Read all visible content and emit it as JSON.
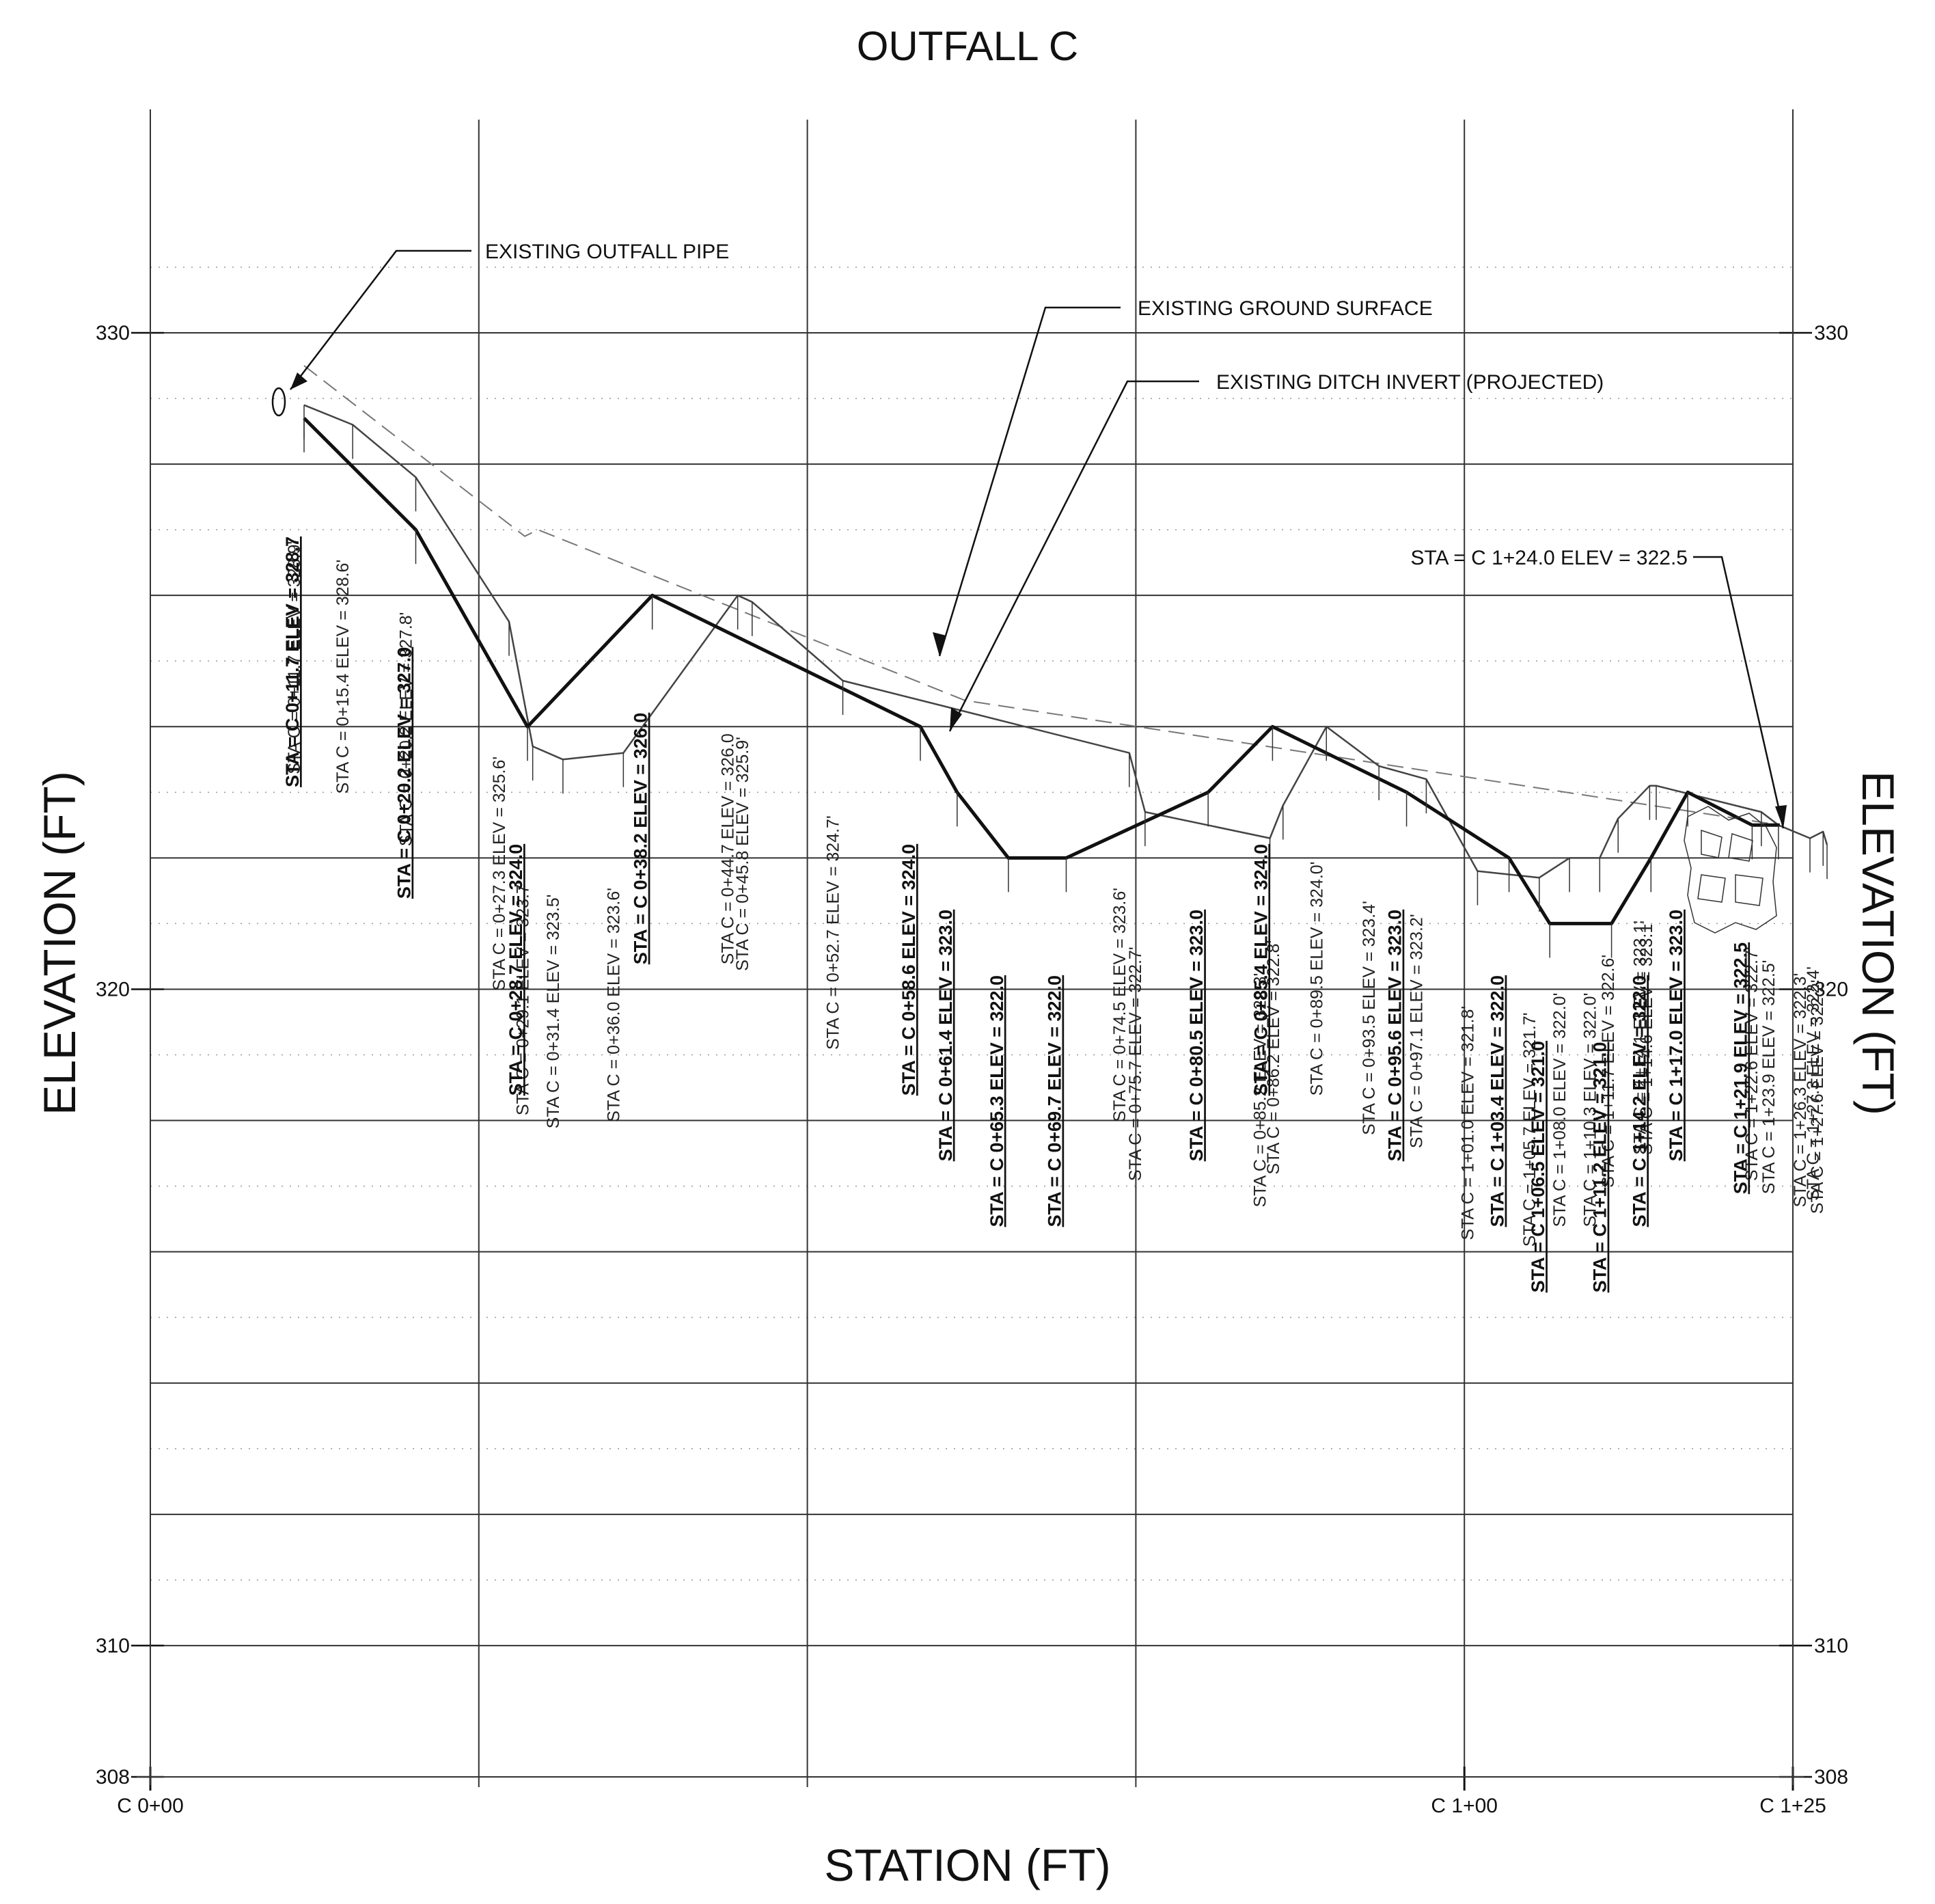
{
  "title": "OUTFALL C",
  "x_axis_label": "STATION (FT)",
  "y_axis_label_left": "ELEVATION (FT)",
  "y_axis_label_right": "ELEVATION (FT)",
  "x_ticks": [
    {
      "label": "C 0+00",
      "station": 0
    },
    {
      "label": "C 1+00",
      "station": 100
    },
    {
      "label": "C 1+25",
      "station": 125
    }
  ],
  "y_ticks": [
    {
      "label": "330",
      "elev": 330
    },
    {
      "label": "320",
      "elev": 320
    },
    {
      "label": "310",
      "elev": 310
    },
    {
      "label": "308",
      "elev": 308
    }
  ],
  "callouts": {
    "outfall_pipe": "EXISTING OUTFALL PIPE",
    "ground_surface": "EXISTING GROUND SURFACE",
    "ditch_invert": "EXISTING DITCH INVERT (PROJECTED)",
    "end_station": "STA = C 1+24.0 ELEV =  322.5"
  },
  "chart_data": {
    "type": "line",
    "xlim": [
      0,
      125
    ],
    "ylim": [
      308,
      331.5
    ],
    "grid": true,
    "proposed_profile": [
      {
        "sta": 11.7,
        "elev": 328.7
      },
      {
        "sta": 20.2,
        "elev": 327.0
      },
      {
        "sta": 28.7,
        "elev": 324.0
      },
      {
        "sta": 38.2,
        "elev": 326.0
      },
      {
        "sta": 58.6,
        "elev": 324.0
      },
      {
        "sta": 61.4,
        "elev": 323.0
      },
      {
        "sta": 65.3,
        "elev": 322.0
      },
      {
        "sta": 69.7,
        "elev": 322.0
      },
      {
        "sta": 80.5,
        "elev": 323.0
      },
      {
        "sta": 85.4,
        "elev": 324.0
      },
      {
        "sta": 95.6,
        "elev": 323.0
      },
      {
        "sta": 103.4,
        "elev": 322.0
      },
      {
        "sta": 106.5,
        "elev": 321.0
      },
      {
        "sta": 111.2,
        "elev": 321.0
      },
      {
        "sta": 114.2,
        "elev": 322.0
      },
      {
        "sta": 117.0,
        "elev": 323.0
      },
      {
        "sta": 121.9,
        "elev": 322.5
      },
      {
        "sta": 124.0,
        "elev": 322.5
      }
    ],
    "existing_ground": [
      {
        "sta": 11.7,
        "elev": 328.9
      },
      {
        "sta": 15.4,
        "elev": 328.6
      },
      {
        "sta": 20.2,
        "elev": 327.8
      },
      {
        "sta": 27.3,
        "elev": 325.6
      },
      {
        "sta": 29.1,
        "elev": 323.7
      },
      {
        "sta": 31.4,
        "elev": 323.5
      },
      {
        "sta": 36.0,
        "elev": 323.6
      },
      {
        "sta": 44.7,
        "elev": 326.0
      },
      {
        "sta": 45.8,
        "elev": 325.9
      },
      {
        "sta": 52.7,
        "elev": 324.7
      },
      {
        "sta": 74.5,
        "elev": 323.6
      },
      {
        "sta": 75.7,
        "elev": 322.7
      },
      {
        "sta": 85.2,
        "elev": 322.3
      },
      {
        "sta": 86.2,
        "elev": 322.8
      },
      {
        "sta": 89.5,
        "elev": 324.0
      },
      {
        "sta": 93.5,
        "elev": 323.4
      },
      {
        "sta": 97.1,
        "elev": 323.2
      },
      {
        "sta": 101.0,
        "elev": 321.8
      },
      {
        "sta": 105.7,
        "elev": 321.7
      },
      {
        "sta": 108.0,
        "elev": 322.0
      },
      {
        "sta": 110.3,
        "elev": 322.0
      },
      {
        "sta": 111.7,
        "elev": 322.6
      },
      {
        "sta": 114.1,
        "elev": 323.1
      },
      {
        "sta": 114.6,
        "elev": 323.1
      },
      {
        "sta": 122.6,
        "elev": 322.7
      },
      {
        "sta": 123.9,
        "elev": 322.5
      },
      {
        "sta": 126.3,
        "elev": 322.3
      },
      {
        "sta": 127.3,
        "elev": 322.4
      },
      {
        "sta": 127.6,
        "elev": 322.2
      }
    ],
    "ditch_invert": [
      {
        "sta": 11.7,
        "elev": 329.5
      },
      {
        "sta": 28.5,
        "elev": 326.9
      },
      {
        "sta": 29.5,
        "elev": 327.0
      },
      {
        "sta": 62.0,
        "elev": 324.4
      },
      {
        "sta": 85.0,
        "elev": 323.7
      },
      {
        "sta": 124.0,
        "elev": 322.5
      }
    ],
    "proposed_labels": [
      {
        "text": "STA = C 0+11.7 ELEV =  328.7",
        "sta": 11.7,
        "elev": 328.7
      },
      {
        "text": "STA = C 0+20.2 ELEV =  327.0",
        "sta": 20.2,
        "elev": 327.0
      },
      {
        "text": "STA = C 0+28.7 ELEV =  324.0",
        "sta": 28.7,
        "elev": 324.0
      },
      {
        "text": "STA = C 0+38.2 ELEV =  326.0",
        "sta": 38.2,
        "elev": 326.0
      },
      {
        "text": "STA = C 0+58.6 ELEV =  324.0",
        "sta": 58.6,
        "elev": 324.0
      },
      {
        "text": "STA = C 0+61.4 ELEV =  323.0",
        "sta": 61.4,
        "elev": 323.0
      },
      {
        "text": "STA = C 0+65.3 ELEV =  322.0",
        "sta": 65.3,
        "elev": 322.0
      },
      {
        "text": "STA = C 0+69.7 ELEV =  322.0",
        "sta": 69.7,
        "elev": 322.0
      },
      {
        "text": "STA = C 0+80.5 ELEV =  323.0",
        "sta": 80.5,
        "elev": 323.0
      },
      {
        "text": "STA = C 0+85.4 ELEV =  324.0",
        "sta": 85.4,
        "elev": 324.0
      },
      {
        "text": "STA = C 0+95.6 ELEV =  323.0",
        "sta": 95.6,
        "elev": 323.0
      },
      {
        "text": "STA = C 1+03.4 ELEV =  322.0",
        "sta": 103.4,
        "elev": 322.0
      },
      {
        "text": "STA = C 1+06.5 ELEV =  321.0",
        "sta": 106.5,
        "elev": 321.0
      },
      {
        "text": "STA = C 1+11.2 ELEV =  321.0",
        "sta": 111.2,
        "elev": 321.0
      },
      {
        "text": "STA = C 1+14.2 ELEV =  322.0",
        "sta": 114.2,
        "elev": 322.0
      },
      {
        "text": "STA = C 1+17.0 ELEV =  323.0",
        "sta": 117.0,
        "elev": 323.0
      },
      {
        "text": "STA = C 1+21.9 ELEV =  322.5",
        "sta": 121.9,
        "elev": 322.5
      }
    ],
    "existing_labels": [
      {
        "text": "STA C = 0+11.7   ELEV = 328.9'",
        "sta": 11.7,
        "elev": 328.9
      },
      {
        "text": "STA C = 0+15.4   ELEV = 328.6'",
        "sta": 15.4,
        "elev": 328.6
      },
      {
        "text": "STA C = 0+20.2   ELEV = 327.8'",
        "sta": 20.2,
        "elev": 327.8
      },
      {
        "text": "STA C = 0+27.3   ELEV = 325.6'",
        "sta": 27.3,
        "elev": 325.6
      },
      {
        "text": "STA C = 0+29.1   ELEV = 323.7'",
        "sta": 29.1,
        "elev": 323.7
      },
      {
        "text": "STA C = 0+31.4   ELEV = 323.5'",
        "sta": 31.4,
        "elev": 323.5
      },
      {
        "text": "STA C = 0+36.0   ELEV = 323.6'",
        "sta": 36.0,
        "elev": 323.6
      },
      {
        "text": "STA C = 0+44.7   ELEV = 326.0",
        "sta": 44.7,
        "elev": 326.0
      },
      {
        "text": "STA C = 0+45.8   ELEV = 325.9'",
        "sta": 45.8,
        "elev": 325.9
      },
      {
        "text": "STA C = 0+52.7   ELEV = 324.7'",
        "sta": 52.7,
        "elev": 324.7
      },
      {
        "text": "STA C = 0+74.5   ELEV = 323.6'",
        "sta": 74.5,
        "elev": 323.6
      },
      {
        "text": "STA C = 0+75.7   ELEV = 322.7'",
        "sta": 75.7,
        "elev": 322.7
      },
      {
        "text": "STA C = 0+85.2   ELEV = 322.3'",
        "sta": 85.2,
        "elev": 322.3
      },
      {
        "text": "STA C = 0+86.2   ELEV = 322.8'",
        "sta": 86.2,
        "elev": 322.8
      },
      {
        "text": "STA C = 0+89.5   ELEV = 324.0'",
        "sta": 89.5,
        "elev": 324.0
      },
      {
        "text": "STA C = 0+93.5   ELEV = 323.4'",
        "sta": 93.5,
        "elev": 323.4
      },
      {
        "text": "STA C = 0+97.1   ELEV = 323.2'",
        "sta": 97.1,
        "elev": 323.2
      },
      {
        "text": "STA C = 1+01.0   ELEV = 321.8'",
        "sta": 101.0,
        "elev": 321.8
      },
      {
        "text": "STA C = 1+05.7   ELEV = 321.7'",
        "sta": 105.7,
        "elev": 321.7
      },
      {
        "text": "STA C = 1+08.0   ELEV = 322.0'",
        "sta": 108.0,
        "elev": 322.0
      },
      {
        "text": "STA C = 1+10.3   ELEV = 322.0'",
        "sta": 110.3,
        "elev": 322.0
      },
      {
        "text": "STA C = 1+11.7   ELEV = 322.6'",
        "sta": 111.7,
        "elev": 322.6
      },
      {
        "text": "STA C = 1+14.1   ELEV = 323.1'",
        "sta": 114.1,
        "elev": 323.1
      },
      {
        "text": "STA C = 1+14.6   ELEV = 323.1'",
        "sta": 114.6,
        "elev": 323.1
      },
      {
        "text": "STA C = 1+22.6   ELEV = 322.7'",
        "sta": 122.6,
        "elev": 322.7
      },
      {
        "text": "STA C = 1+23.9   ELEV = 322.5'",
        "sta": 123.9,
        "elev": 322.5
      },
      {
        "text": "STA C = 1+26.3   ELEV = 322.3'",
        "sta": 126.3,
        "elev": 322.3
      },
      {
        "text": "STA C = 1+27.3   ELEV = 322.4'",
        "sta": 127.3,
        "elev": 322.4
      },
      {
        "text": "STA C = 1+27.6   ELEV = 322.2'",
        "sta": 127.6,
        "elev": 322.2
      }
    ]
  }
}
